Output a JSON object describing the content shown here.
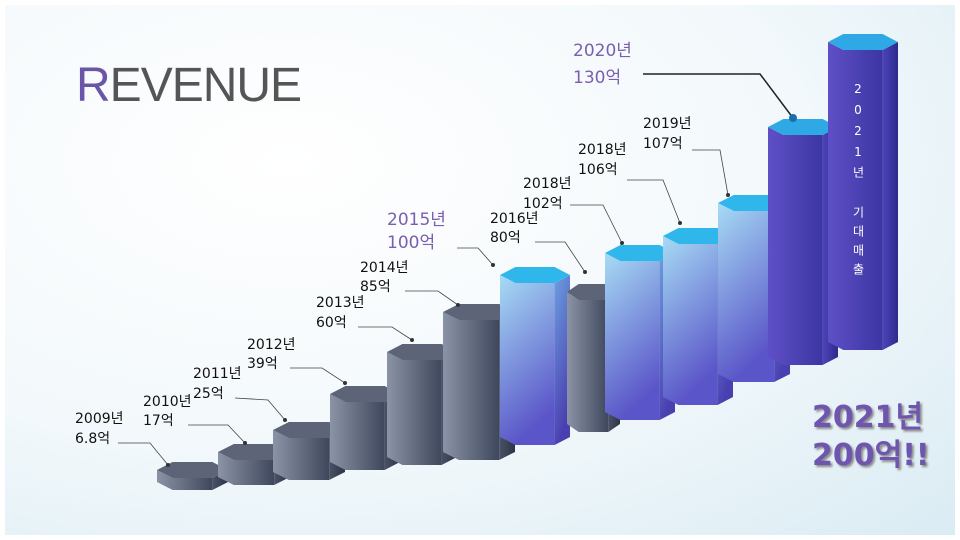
{
  "title": "REVENUE",
  "labels": [
    {
      "year": "2009년",
      "amount": "6.8억"
    },
    {
      "year": "2010년",
      "amount": "17억"
    },
    {
      "year": "2011년",
      "amount": "25억"
    },
    {
      "year": "2012년",
      "amount": "39억"
    },
    {
      "year": "2013년",
      "amount": "60억"
    },
    {
      "year": "2014년",
      "amount": "85억"
    },
    {
      "year": "2015년",
      "amount": "100억"
    },
    {
      "year": "2016년",
      "amount": "80억"
    },
    {
      "year": "2018년",
      "amount": "102억"
    },
    {
      "year": "2018년",
      "amount": "106억"
    },
    {
      "year": "2019년",
      "amount": "107억"
    },
    {
      "year": "2020년",
      "amount": "130억"
    }
  ],
  "callout": {
    "vertical": "2021년 기대매출",
    "year": "2021년",
    "amount": "200억!!"
  }
}
